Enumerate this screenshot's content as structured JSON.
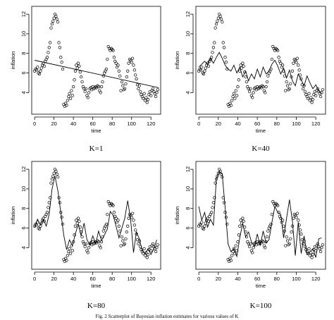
{
  "figure_caption": "Fig. 2 Scatterplot of Bayesian inflation estimates for various values of K",
  "chart_data": [
    {
      "type": "scatter",
      "caption": "K=1",
      "xlabel": "time",
      "ylabel": "inflation",
      "xlim": [
        -3,
        130
      ],
      "ylim": [
        1.8,
        12.8
      ],
      "xticks": [
        0,
        20,
        40,
        60,
        80,
        100,
        120
      ],
      "yticks": [
        4,
        6,
        8,
        10,
        12
      ],
      "fit_style": "linear",
      "fit_x": [
        0,
        128
      ],
      "fit_y": [
        7.3,
        4.5
      ]
    },
    {
      "type": "scatter",
      "caption": "K=40",
      "xlabel": "time",
      "ylabel": "inflation",
      "xlim": [
        -3,
        130
      ],
      "ylim": [
        1.8,
        12.8
      ],
      "xticks": [
        0,
        20,
        40,
        60,
        80,
        100,
        120
      ],
      "yticks": [
        4,
        6,
        8,
        10,
        12
      ],
      "fit_style": "smoothed",
      "fit_x": [
        0,
        3,
        6,
        9,
        12,
        15,
        18,
        21,
        24,
        27,
        30,
        33,
        36,
        39,
        42,
        45,
        48,
        51,
        54,
        57,
        60,
        63,
        66,
        69,
        72,
        75,
        78,
        81,
        84,
        87,
        90,
        93,
        96,
        99,
        102,
        105,
        108,
        111,
        114,
        117,
        120,
        123,
        126
      ],
      "fit_y": [
        6.6,
        6.9,
        7.2,
        6.9,
        7.5,
        7.0,
        7.6,
        8.1,
        7.5,
        6.8,
        6.4,
        6.2,
        6.8,
        6.0,
        6.6,
        5.6,
        6.2,
        5.2,
        5.9,
        5.4,
        6.4,
        5.6,
        6.6,
        5.9,
        6.2,
        6.9,
        7.3,
        6.7,
        5.9,
        6.5,
        5.5,
        6.3,
        5.2,
        4.7,
        5.9,
        5.3,
        4.7,
        5.7,
        5.0,
        4.4,
        4.8,
        4.2,
        3.9
      ]
    },
    {
      "type": "scatter",
      "caption": "K=80",
      "xlabel": "time",
      "ylabel": "inflation",
      "xlim": [
        -3,
        130
      ],
      "ylim": [
        1.8,
        12.8
      ],
      "xticks": [
        0,
        20,
        40,
        60,
        80,
        100,
        120
      ],
      "yticks": [
        4,
        6,
        8,
        10,
        12
      ],
      "fit_style": "smoothed",
      "fit_x": [
        0,
        3,
        6,
        9,
        12,
        15,
        18,
        21,
        24,
        27,
        30,
        33,
        36,
        39,
        42,
        45,
        48,
        51,
        54,
        57,
        60,
        63,
        66,
        69,
        72,
        75,
        78,
        81,
        84,
        87,
        90,
        93,
        96,
        99,
        102,
        105,
        108,
        111,
        114,
        117,
        120,
        123,
        126
      ],
      "fit_y": [
        6.1,
        6.9,
        6.3,
        6.9,
        6.2,
        7.4,
        10.0,
        11.3,
        9.8,
        7.6,
        5.3,
        3.8,
        4.8,
        4.2,
        5.4,
        6.4,
        5.2,
        6.5,
        4.8,
        4.3,
        5.2,
        4.4,
        5.7,
        4.7,
        5.3,
        5.9,
        7.7,
        7.3,
        6.2,
        5.0,
        6.0,
        7.0,
        8.8,
        6.9,
        3.5,
        5.6,
        4.9,
        3.7,
        3.4,
        3.9,
        3.3,
        3.9,
        4.8
      ]
    },
    {
      "type": "scatter",
      "caption": "K=100",
      "xlabel": "time",
      "ylabel": "inflation",
      "xlim": [
        -3,
        130
      ],
      "ylim": [
        1.8,
        12.8
      ],
      "xticks": [
        0,
        20,
        40,
        60,
        80,
        100,
        120
      ],
      "yticks": [
        4,
        6,
        8,
        10,
        12
      ],
      "fit_style": "smoothed",
      "fit_x": [
        0,
        3,
        6,
        9,
        12,
        15,
        18,
        21,
        24,
        27,
        30,
        33,
        36,
        39,
        42,
        45,
        48,
        51,
        54,
        57,
        60,
        63,
        66,
        69,
        72,
        75,
        78,
        81,
        84,
        87,
        90,
        93,
        96,
        99,
        102,
        105,
        108,
        111,
        114,
        117,
        120,
        123,
        126
      ],
      "fit_y": [
        8.2,
        6.8,
        7.6,
        6.1,
        6.9,
        6.3,
        11.0,
        11.8,
        11.5,
        8.1,
        4.4,
        3.6,
        3.9,
        3.1,
        5.0,
        6.5,
        5.1,
        5.6,
        4.6,
        4.1,
        5.4,
        4.2,
        5.7,
        4.5,
        4.8,
        6.6,
        8.2,
        7.6,
        7.4,
        5.0,
        7.0,
        8.9,
        6.7,
        3.2,
        6.6,
        3.4,
        5.2,
        3.3,
        3.6,
        3.9,
        3.0,
        4.9,
        5.0
      ]
    }
  ],
  "observations": {
    "x": [
      0,
      1,
      2,
      3,
      4,
      5,
      6,
      7,
      8,
      9,
      10,
      11,
      12,
      13,
      14,
      15,
      16,
      17,
      18,
      19,
      20,
      21,
      22,
      23,
      24,
      25,
      26,
      27,
      28,
      29,
      30,
      31,
      32,
      33,
      34,
      35,
      36,
      37,
      38,
      39,
      40,
      41,
      42,
      43,
      44,
      45,
      46,
      47,
      48,
      49,
      50,
      51,
      52,
      53,
      54,
      55,
      56,
      57,
      58,
      59,
      60,
      61,
      62,
      63,
      64,
      65,
      66,
      67,
      68,
      69,
      70,
      71,
      72,
      73,
      74,
      75,
      76,
      77,
      78,
      79,
      80,
      81,
      82,
      83,
      84,
      85,
      86,
      87,
      88,
      89,
      90,
      91,
      92,
      93,
      94,
      95,
      96,
      97,
      98,
      99,
      100,
      101,
      102,
      103,
      104,
      105,
      106,
      107,
      108,
      109,
      110,
      111,
      112,
      113,
      114,
      115,
      116,
      117,
      118,
      119,
      120,
      121,
      122,
      123,
      124,
      125,
      126,
      127
    ],
    "y": [
      6.2,
      6.4,
      6.3,
      6.6,
      6.0,
      5.9,
      6.2,
      6.5,
      6.8,
      7.0,
      6.7,
      7.2,
      7.4,
      7.6,
      8.1,
      8.6,
      9.1,
      10.6,
      11.0,
      11.3,
      11.6,
      12.0,
      11.8,
      11.5,
      11.2,
      9.1,
      8.6,
      7.6,
      7.1,
      6.4,
      2.8,
      2.6,
      2.9,
      2.7,
      3.2,
      3.6,
      3.9,
      3.4,
      4.2,
      3.7,
      4.6,
      5.3,
      6.2,
      6.8,
      6.5,
      7.0,
      6.7,
      6.1,
      5.6,
      5.1,
      4.6,
      4.4,
      4.1,
      4.4,
      3.7,
      3.5,
      4.0,
      4.4,
      4.5,
      4.3,
      4.6,
      4.4,
      4.5,
      4.6,
      4.5,
      4.7,
      4.6,
      4.2,
      4.0,
      4.6,
      5.1,
      5.7,
      6.0,
      6.2,
      6.4,
      7.4,
      8.7,
      8.5,
      8.3,
      8.5,
      8.4,
      8.3,
      7.6,
      7.2,
      7.0,
      6.6,
      6.8,
      6.2,
      5.7,
      4.2,
      5.1,
      4.7,
      4.3,
      4.4,
      4.9,
      5.6,
      6.2,
      7.0,
      7.4,
      7.3,
      7.1,
      7.5,
      6.8,
      6.3,
      5.8,
      5.4,
      4.8,
      4.4,
      4.7,
      4.1,
      3.8,
      3.6,
      3.4,
      3.9,
      3.2,
      3.5,
      3.0,
      3.3,
      3.8,
      4.1,
      3.7,
      4.2,
      4.4,
      4.1,
      3.9,
      3.6,
      4.0,
      4.3
    ]
  }
}
